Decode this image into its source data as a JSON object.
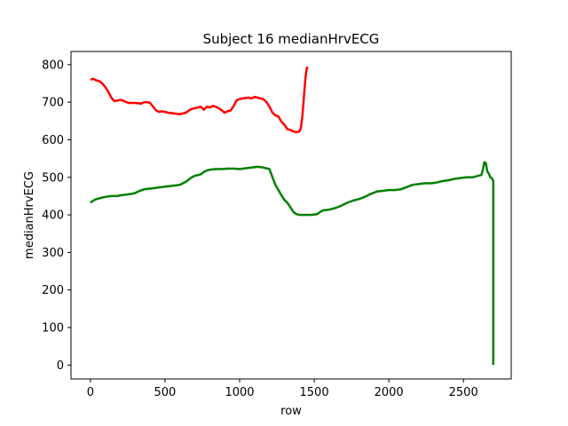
{
  "chart_data": {
    "type": "line",
    "title": "Subject 16 medianHrvECG",
    "xlabel": "row",
    "ylabel": "medianHrvECG",
    "xlim": [
      -130,
      2820
    ],
    "ylim": [
      -37,
      835
    ],
    "xticks": [
      0,
      500,
      1000,
      1500,
      2000,
      2500
    ],
    "yticks": [
      0,
      100,
      200,
      300,
      400,
      500,
      600,
      700,
      800
    ],
    "grid": false,
    "legend": "none",
    "series": [
      {
        "color": "#ff0000",
        "points": [
          [
            0,
            760
          ],
          [
            20,
            762
          ],
          [
            40,
            758
          ],
          [
            60,
            756
          ],
          [
            80,
            750
          ],
          [
            100,
            740
          ],
          [
            120,
            728
          ],
          [
            140,
            712
          ],
          [
            160,
            703
          ],
          [
            180,
            704
          ],
          [
            200,
            706
          ],
          [
            220,
            704
          ],
          [
            240,
            700
          ],
          [
            260,
            698
          ],
          [
            300,
            698
          ],
          [
            340,
            696
          ],
          [
            360,
            700
          ],
          [
            380,
            700
          ],
          [
            400,
            698
          ],
          [
            420,
            688
          ],
          [
            440,
            678
          ],
          [
            460,
            674
          ],
          [
            480,
            676
          ],
          [
            500,
            674
          ],
          [
            520,
            672
          ],
          [
            560,
            670
          ],
          [
            600,
            668
          ],
          [
            620,
            670
          ],
          [
            640,
            672
          ],
          [
            660,
            678
          ],
          [
            680,
            682
          ],
          [
            700,
            684
          ],
          [
            720,
            686
          ],
          [
            740,
            688
          ],
          [
            760,
            680
          ],
          [
            780,
            688
          ],
          [
            800,
            686
          ],
          [
            820,
            690
          ],
          [
            840,
            688
          ],
          [
            860,
            684
          ],
          [
            880,
            678
          ],
          [
            900,
            672
          ],
          [
            920,
            676
          ],
          [
            940,
            678
          ],
          [
            960,
            690
          ],
          [
            980,
            705
          ],
          [
            1000,
            708
          ],
          [
            1020,
            710
          ],
          [
            1060,
            712
          ],
          [
            1080,
            710
          ],
          [
            1100,
            714
          ],
          [
            1120,
            712
          ],
          [
            1140,
            710
          ],
          [
            1160,
            708
          ],
          [
            1180,
            700
          ],
          [
            1200,
            688
          ],
          [
            1220,
            672
          ],
          [
            1240,
            665
          ],
          [
            1260,
            662
          ],
          [
            1280,
            648
          ],
          [
            1300,
            640
          ],
          [
            1320,
            628
          ],
          [
            1340,
            626
          ],
          [
            1360,
            622
          ],
          [
            1380,
            620
          ],
          [
            1400,
            622
          ],
          [
            1410,
            630
          ],
          [
            1420,
            660
          ],
          [
            1430,
            710
          ],
          [
            1440,
            760
          ],
          [
            1450,
            792
          ],
          [
            1460,
            790
          ]
        ]
      },
      {
        "color": "#008000",
        "points": [
          [
            0,
            432
          ],
          [
            20,
            438
          ],
          [
            40,
            442
          ],
          [
            60,
            444
          ],
          [
            80,
            446
          ],
          [
            100,
            448
          ],
          [
            140,
            450
          ],
          [
            180,
            450
          ],
          [
            200,
            452
          ],
          [
            240,
            454
          ],
          [
            280,
            456
          ],
          [
            300,
            458
          ],
          [
            320,
            462
          ],
          [
            340,
            465
          ],
          [
            360,
            468
          ],
          [
            400,
            470
          ],
          [
            440,
            472
          ],
          [
            480,
            474
          ],
          [
            520,
            476
          ],
          [
            560,
            478
          ],
          [
            600,
            480
          ],
          [
            640,
            488
          ],
          [
            660,
            494
          ],
          [
            680,
            500
          ],
          [
            700,
            504
          ],
          [
            740,
            508
          ],
          [
            760,
            514
          ],
          [
            780,
            518
          ],
          [
            800,
            520
          ],
          [
            840,
            522
          ],
          [
            880,
            522
          ],
          [
            920,
            523
          ],
          [
            960,
            523
          ],
          [
            1000,
            522
          ],
          [
            1040,
            524
          ],
          [
            1080,
            526
          ],
          [
            1120,
            528
          ],
          [
            1160,
            526
          ],
          [
            1200,
            522
          ],
          [
            1220,
            500
          ],
          [
            1240,
            480
          ],
          [
            1260,
            466
          ],
          [
            1280,
            452
          ],
          [
            1300,
            440
          ],
          [
            1320,
            432
          ],
          [
            1340,
            420
          ],
          [
            1360,
            408
          ],
          [
            1380,
            402
          ],
          [
            1400,
            400
          ],
          [
            1440,
            400
          ],
          [
            1480,
            400
          ],
          [
            1520,
            402
          ],
          [
            1540,
            408
          ],
          [
            1560,
            412
          ],
          [
            1600,
            414
          ],
          [
            1640,
            418
          ],
          [
            1680,
            424
          ],
          [
            1720,
            432
          ],
          [
            1760,
            438
          ],
          [
            1800,
            442
          ],
          [
            1840,
            448
          ],
          [
            1880,
            456
          ],
          [
            1920,
            462
          ],
          [
            1960,
            464
          ],
          [
            2000,
            466
          ],
          [
            2040,
            466
          ],
          [
            2080,
            468
          ],
          [
            2120,
            474
          ],
          [
            2160,
            480
          ],
          [
            2200,
            482
          ],
          [
            2240,
            484
          ],
          [
            2280,
            484
          ],
          [
            2320,
            486
          ],
          [
            2360,
            490
          ],
          [
            2400,
            492
          ],
          [
            2440,
            496
          ],
          [
            2480,
            498
          ],
          [
            2520,
            500
          ],
          [
            2560,
            500
          ],
          [
            2600,
            504
          ],
          [
            2620,
            506
          ],
          [
            2630,
            520
          ],
          [
            2640,
            540
          ],
          [
            2650,
            538
          ],
          [
            2660,
            515
          ],
          [
            2670,
            510
          ],
          [
            2680,
            500
          ],
          [
            2690,
            498
          ],
          [
            2700,
            490
          ],
          [
            2700,
            450
          ],
          [
            2700,
            300
          ],
          [
            2700,
            150
          ],
          [
            2700,
            0
          ]
        ]
      }
    ]
  }
}
